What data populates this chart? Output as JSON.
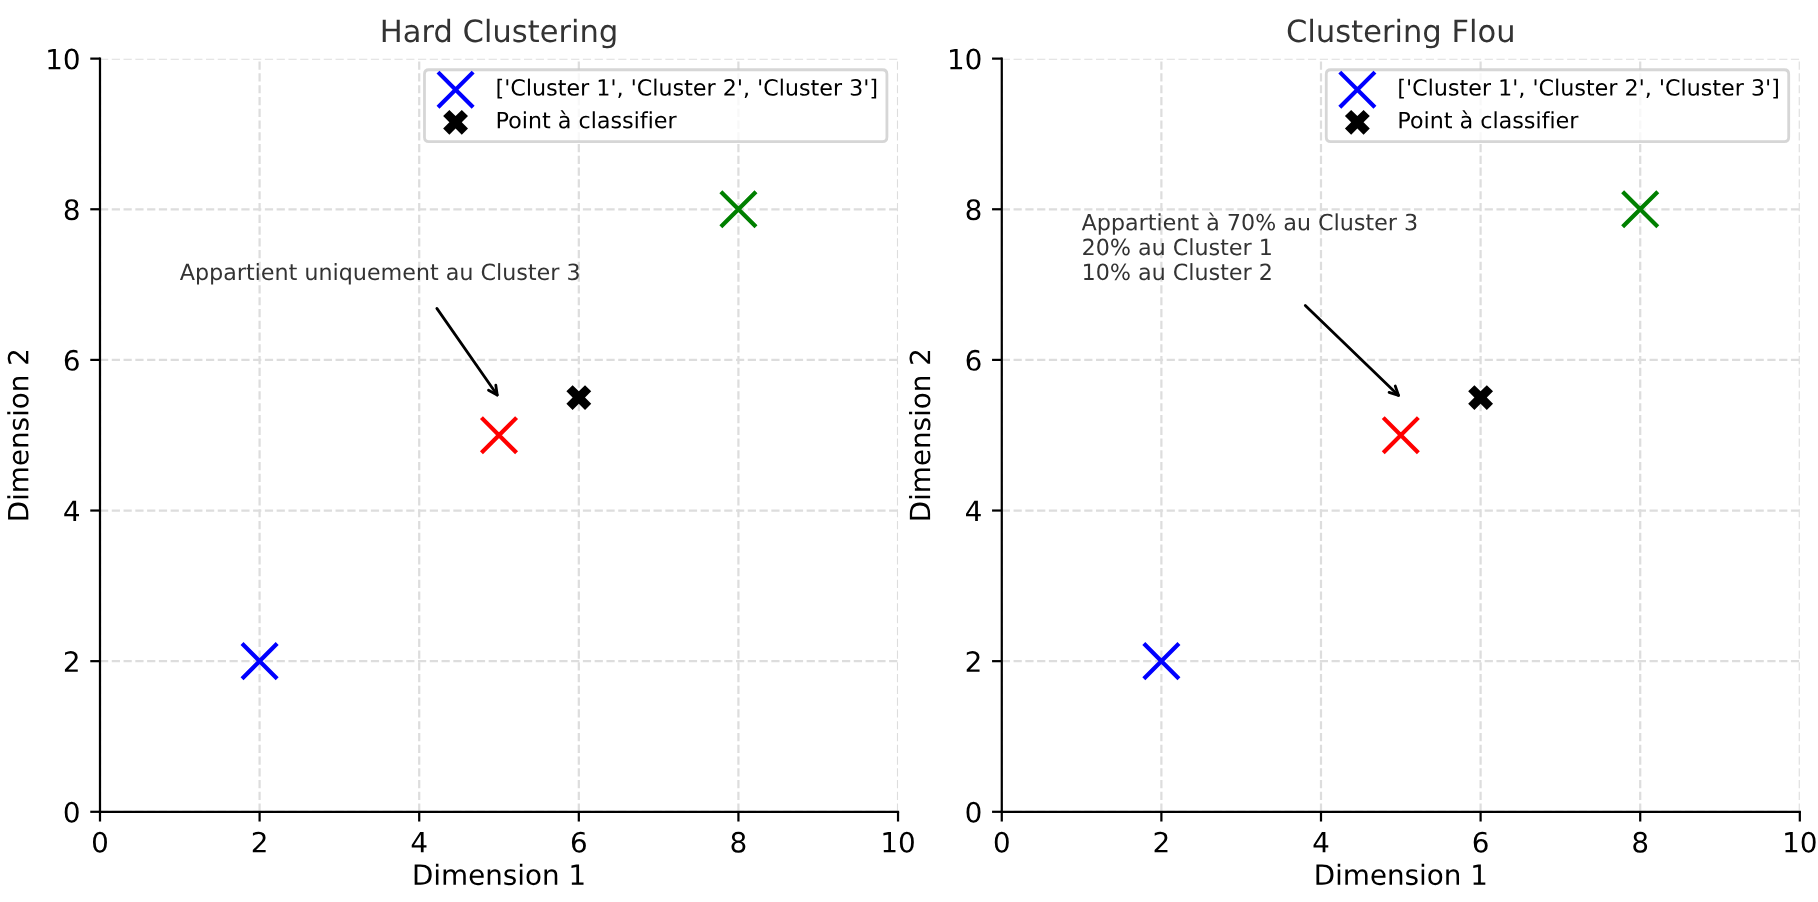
{
  "chart_data": [
    {
      "type": "scatter",
      "title": "Hard Clustering",
      "xlabel": "Dimension 1",
      "ylabel": "Dimension 2",
      "xlim": [
        0,
        10
      ],
      "ylim": [
        0,
        10
      ],
      "xticks": [
        0,
        2,
        4,
        6,
        8,
        10
      ],
      "yticks": [
        0,
        2,
        4,
        6,
        8,
        10
      ],
      "grid": true,
      "legend": "top right",
      "marker": "cross",
      "series": [
        {
          "name": "['Cluster 1', 'Cluster 2', 'Cluster 3']",
          "x": [
            2,
            8,
            5
          ],
          "values": [
            2,
            8,
            5
          ],
          "colors": [
            "#0000ff",
            "#008000",
            "#ff0000"
          ]
        },
        {
          "name": "Point à classifier",
          "x": [
            6
          ],
          "values": [
            5.5
          ],
          "color": "#000000"
        }
      ],
      "annotations": [
        "Appartient uniquement au Cluster 3"
      ]
    },
    {
      "type": "scatter",
      "title": "Clustering Flou",
      "xlabel": "Dimension 1",
      "ylabel": "Dimension 2",
      "xlim": [
        0,
        10
      ],
      "ylim": [
        0,
        10
      ],
      "xticks": [
        0,
        2,
        4,
        6,
        8,
        10
      ],
      "yticks": [
        0,
        2,
        4,
        6,
        8,
        10
      ],
      "grid": true,
      "legend": "top right",
      "marker": "cross",
      "series": [
        {
          "name": "['Cluster 1', 'Cluster 2', 'Cluster 3']",
          "x": [
            2,
            8,
            5
          ],
          "values": [
            2,
            8,
            5
          ],
          "colors": [
            "#0000ff",
            "#008000",
            "#ff0000"
          ]
        },
        {
          "name": "Point à classifier",
          "x": [
            6
          ],
          "values": [
            5.5
          ],
          "color": "#000000"
        }
      ],
      "annotations": [
        "Appartient à 70% au Cluster 3\n20% au Cluster 1\n10% au Cluster 2"
      ]
    }
  ]
}
